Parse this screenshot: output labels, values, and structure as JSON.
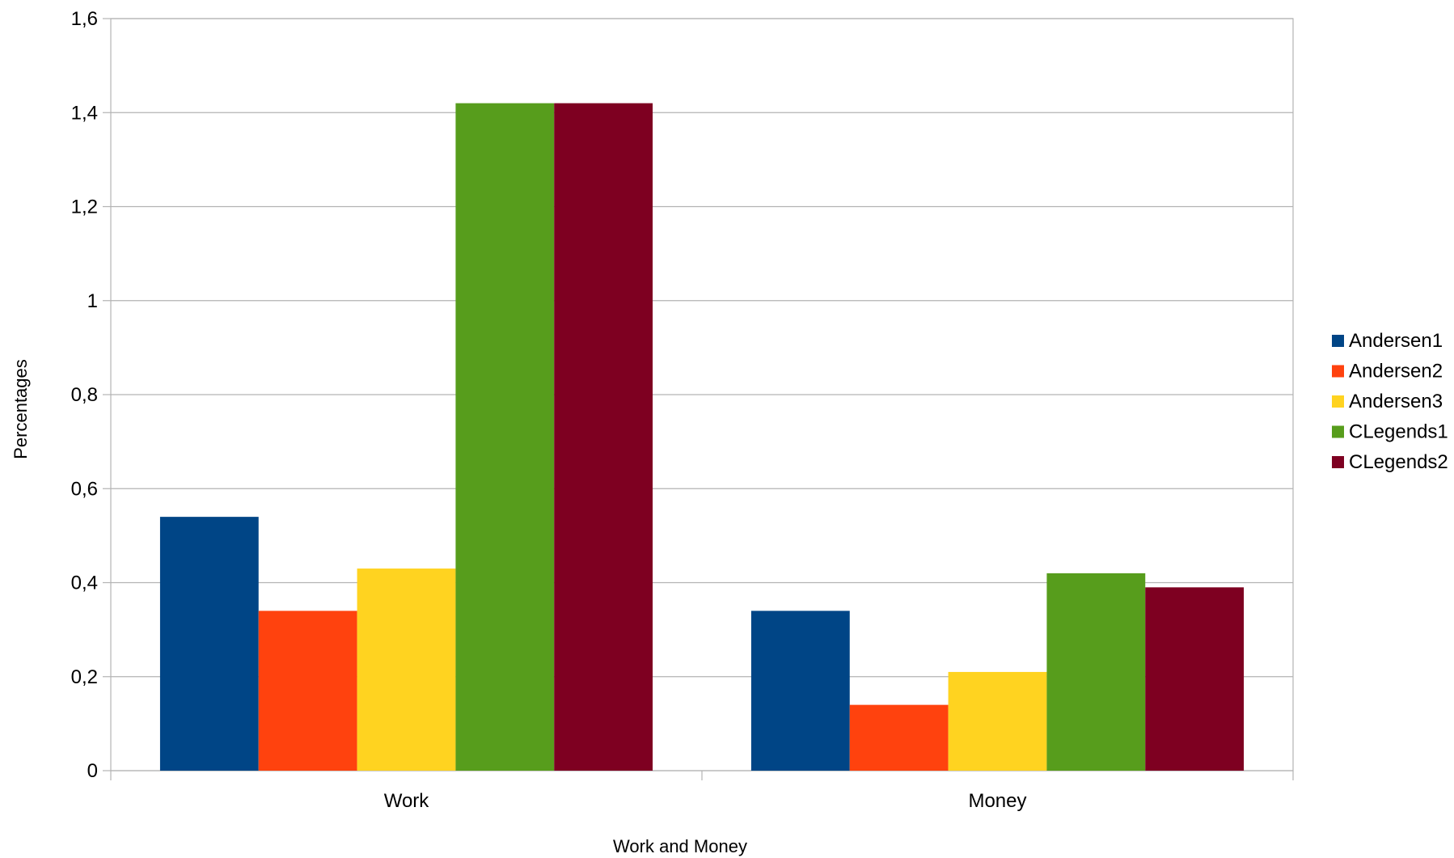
{
  "chart_data": {
    "type": "bar",
    "title": "",
    "xlabel": "Work and Money",
    "ylabel": "Percentages",
    "categories": [
      "Work",
      "Money"
    ],
    "series": [
      {
        "name": "Andersen1",
        "color": "#004586",
        "values": [
          0.54,
          0.34
        ]
      },
      {
        "name": "Andersen2",
        "color": "#ff420e",
        "values": [
          0.34,
          0.14
        ]
      },
      {
        "name": "Andersen3",
        "color": "#ffd320",
        "values": [
          0.43,
          0.21
        ]
      },
      {
        "name": "CLegends1",
        "color": "#579d1c",
        "values": [
          1.42,
          0.42
        ]
      },
      {
        "name": "CLegends2",
        "color": "#7e0021",
        "values": [
          1.42,
          0.39
        ]
      }
    ],
    "ylim": [
      0,
      1.6
    ],
    "yticks": [
      {
        "value": 0,
        "label": "0"
      },
      {
        "value": 0.2,
        "label": "0,2"
      },
      {
        "value": 0.4,
        "label": "0,4"
      },
      {
        "value": 0.6,
        "label": "0,6"
      },
      {
        "value": 0.8,
        "label": "0,8"
      },
      {
        "value": 1.0,
        "label": "1"
      },
      {
        "value": 1.2,
        "label": "1,2"
      },
      {
        "value": 1.4,
        "label": "1,4"
      },
      {
        "value": 1.6,
        "label": "1,6"
      }
    ],
    "grid": true,
    "legend_position": "right"
  }
}
